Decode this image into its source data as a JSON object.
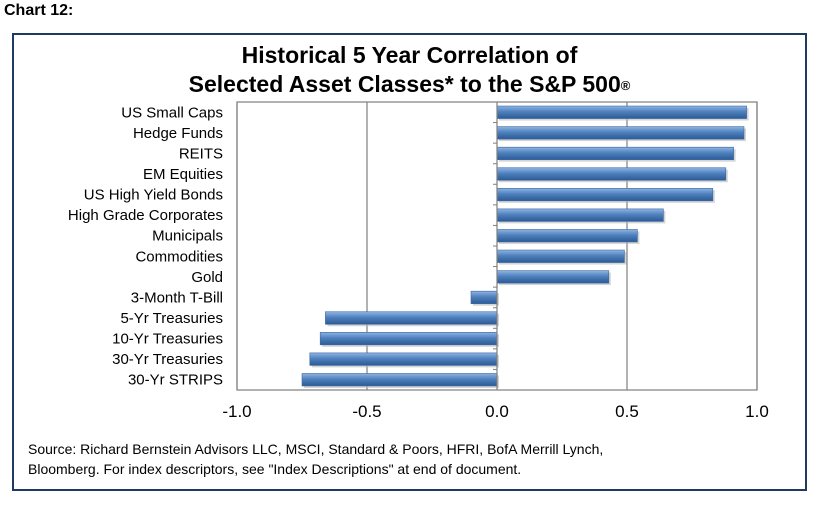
{
  "header": {
    "chart_label": "Chart 12:"
  },
  "title": {
    "line1": "Historical 5 Year Correlation of",
    "line2": "Selected Asset Classes* to the S&P 500",
    "line2_sup": "®"
  },
  "source": {
    "line1": "Source: Richard Bernstein Advisors LLC, MSCI, Standard & Poors, HFRI, BofA Merrill Lynch,",
    "line2": "Bloomberg.  For index descriptors, see \"Index Descriptions\" at end of document."
  },
  "colors": {
    "bar_fill": "#4f81bd",
    "bar_light": "#8fb4e3",
    "bar_dark": "#2c5a94",
    "frame": "#1f3a5f"
  },
  "chart_data": {
    "type": "bar",
    "orientation": "horizontal",
    "title": "Historical 5 Year Correlation of Selected Asset Classes* to the S&P 500®",
    "categories": [
      "US Small Caps",
      "Hedge Funds",
      "REITS",
      "EM Equities",
      "US High Yield Bonds",
      "High Grade Corporates",
      "Municipals",
      "Commodities",
      "Gold",
      "3-Month T-Bill",
      "5-Yr Treasuries",
      "10-Yr Treasuries",
      "30-Yr Treasuries",
      "30-Yr STRIPS"
    ],
    "values": [
      0.96,
      0.95,
      0.91,
      0.88,
      0.83,
      0.64,
      0.54,
      0.49,
      0.43,
      -0.1,
      -0.66,
      -0.68,
      -0.72,
      -0.75
    ],
    "xlim": [
      -1.0,
      1.0
    ],
    "xticks": [
      -1.0,
      -0.5,
      0.0,
      0.5,
      1.0
    ],
    "xtick_labels": [
      "-1.0",
      "-0.5",
      "0.0",
      "0.5",
      "1.0"
    ],
    "xlabel": "",
    "ylabel": "",
    "grid": "vertical"
  }
}
